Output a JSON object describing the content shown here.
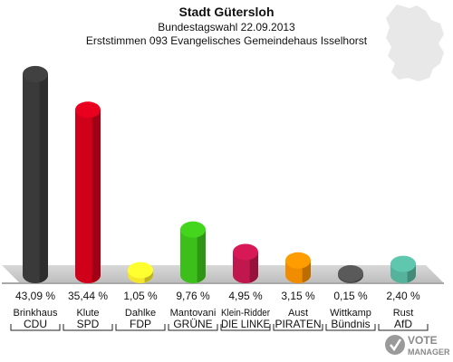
{
  "chart_data": {
    "type": "bar",
    "title": "Stadt Gütersloh",
    "subtitle": "Bundestagswahl 22.09.2013",
    "subtitle2": "Erststimmen 093 Evangelisches Gemeindehaus Isselhorst",
    "categories": [
      "CDU",
      "SPD",
      "FDP",
      "GRÜNE",
      "DIE LINKE",
      "PIRATEN",
      "Bündnis",
      "AfD"
    ],
    "candidates": [
      "Brinkhaus",
      "Klute",
      "Dahlke",
      "Mantovani",
      "Klein-Ridder",
      "Aust",
      "Wittkamp",
      "Rust"
    ],
    "values": [
      43.09,
      35.44,
      1.05,
      9.76,
      4.95,
      3.15,
      0.15,
      2.4
    ],
    "value_labels": [
      "43,09 %",
      "35,44 %",
      "1,05 %",
      "9,76 %",
      "4,95 %",
      "3,15 %",
      "0,15 %",
      "2,40 %"
    ],
    "colors": [
      "#3a3a3a",
      "#d0001b",
      "#f4e62b",
      "#3cbf1a",
      "#c0174e",
      "#f08c00",
      "#505050",
      "#55b29b"
    ],
    "ylim": [
      0,
      45
    ],
    "grid": false,
    "legend": "none"
  },
  "branding": {
    "logo_line1": "VOTE",
    "logo_line2": "MANAGER"
  }
}
